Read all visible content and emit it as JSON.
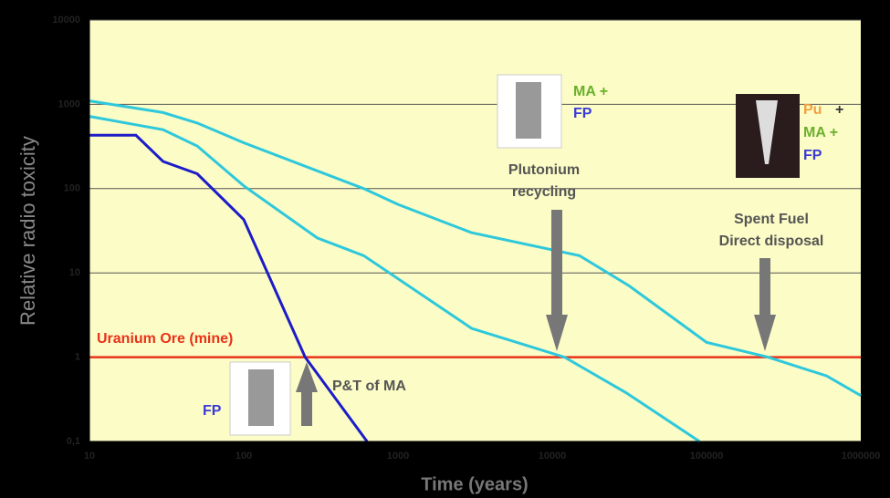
{
  "chart_data": {
    "type": "line",
    "xlabel": "Time  (years)",
    "ylabel": "Relative radio toxicity",
    "xlog": true,
    "ylog": true,
    "grid": true,
    "xlim": [
      10,
      1000000
    ],
    "ylim": [
      0.1,
      10000
    ],
    "xticks": [
      10,
      100,
      1000,
      10000,
      100000,
      1000000
    ],
    "yticks": [
      {
        "value": 0.1,
        "label": "0,1"
      },
      1,
      10,
      100,
      1000,
      10000
    ],
    "series": [
      {
        "color": "#1c1cc8",
        "x": [
          10,
          20,
          30,
          50,
          100,
          250,
          630
        ],
        "values": [
          430,
          430,
          210,
          150,
          43,
          1,
          0.1
        ]
      },
      {
        "color": "#2ec8dc",
        "x": [
          10,
          30,
          50,
          100,
          300,
          600,
          3000,
          12000,
          30000,
          90000
        ],
        "values": [
          720,
          500,
          320,
          108,
          26,
          16,
          2.2,
          1,
          0.38,
          0.1
        ]
      },
      {
        "color": "#2ec8dc",
        "x": [
          10,
          30,
          50,
          100,
          600,
          1000,
          3000,
          15000,
          31600,
          100000,
          250000,
          600000,
          1000000
        ],
        "values": [
          1100,
          800,
          600,
          350,
          100,
          65,
          30,
          16,
          7,
          1.5,
          1,
          0.6,
          0.35
        ]
      }
    ],
    "hline": {
      "value": 1,
      "label": "Uranium Ore (mine)",
      "color": "#e8321a"
    },
    "annotations": [
      "MA +",
      "FP",
      "Plutonium",
      "recycling",
      "Pu",
      "+",
      "MA +",
      "FP",
      "Spent Fuel",
      "Direct disposal",
      "P&T of MA",
      "FP"
    ]
  }
}
